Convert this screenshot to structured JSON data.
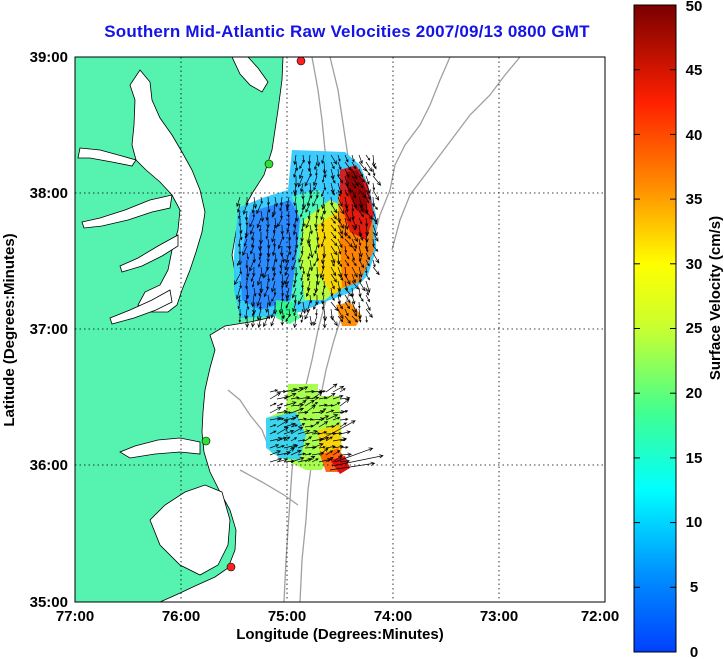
{
  "title": "Southern Mid-Atlantic Raw Velocities 2007/09/13 0800 GMT",
  "map": {
    "x_axis_label": "Longitude (Degrees:Minutes)",
    "y_axis_label": "Latitude (Degrees:Minutes)",
    "lon_range": [
      -77,
      -72
    ],
    "lat_range": [
      35,
      39
    ],
    "x_ticks": [
      {
        "value": -77,
        "label": "77:00"
      },
      {
        "value": -76,
        "label": "76:00"
      },
      {
        "value": -75,
        "label": "75:00"
      },
      {
        "value": -74,
        "label": "74:00"
      },
      {
        "value": -73,
        "label": "73:00"
      },
      {
        "value": -72,
        "label": "72:00"
      }
    ],
    "y_ticks": [
      {
        "value": 39,
        "label": "39:00"
      },
      {
        "value": 38,
        "label": "38:00"
      },
      {
        "value": 37,
        "label": "37:00"
      },
      {
        "value": 36,
        "label": "36:00"
      },
      {
        "value": 35,
        "label": "35:00"
      }
    ],
    "grid": true,
    "land_color": "#55f2b0",
    "coast_color": "#000000",
    "bathymetry_color": "#a0a0a0",
    "radar_sites": [
      {
        "lon": -74.85,
        "lat": 39.01,
        "color": "#ff2020"
      },
      {
        "lon": -75.16,
        "lat": 38.23,
        "color": "#30e030"
      },
      {
        "lon": -75.72,
        "lat": 36.19,
        "color": "#30e030"
      },
      {
        "lon": -75.52,
        "lat": 35.26,
        "color": "#ff2020"
      }
    ]
  },
  "colorbar": {
    "label": "Surface Velocity (cm/s)",
    "min": 0,
    "max": 50,
    "colormap": "jet",
    "ticks": [
      {
        "value": 0,
        "label": "0"
      },
      {
        "value": 5,
        "label": "5"
      },
      {
        "value": 10,
        "label": "10"
      },
      {
        "value": 15,
        "label": "15"
      },
      {
        "value": 20,
        "label": "20"
      },
      {
        "value": 25,
        "label": "25"
      },
      {
        "value": 30,
        "label": "30"
      },
      {
        "value": 35,
        "label": "35"
      },
      {
        "value": 40,
        "label": "40"
      },
      {
        "value": 45,
        "label": "45"
      },
      {
        "value": 50,
        "label": "50"
      }
    ]
  }
}
